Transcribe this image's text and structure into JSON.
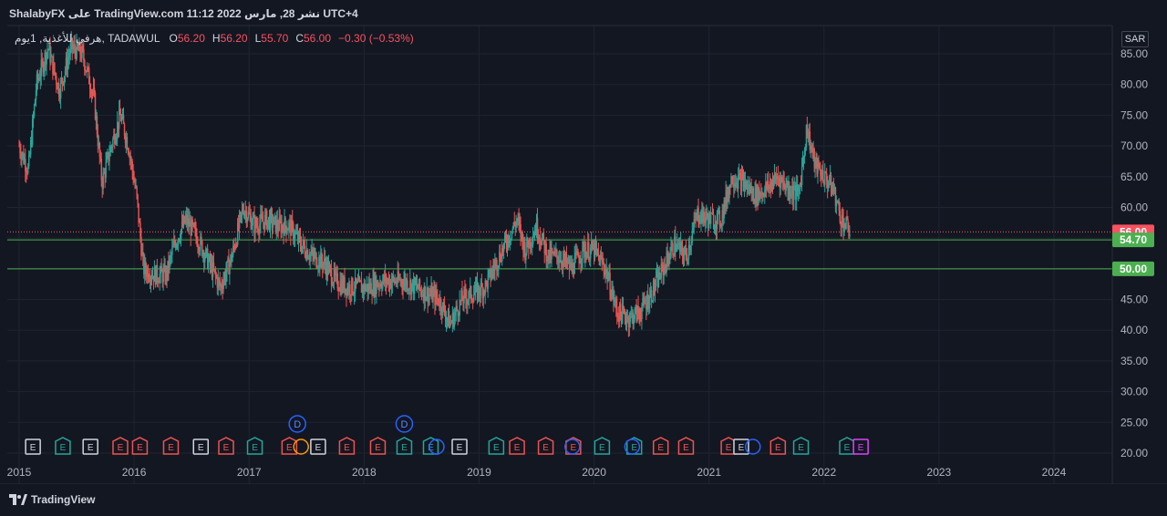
{
  "header": {
    "publisher_line": "ShalabyFX على TradingView.com نشر 28, مارس 2022 11:12 UTC+4"
  },
  "legend": {
    "symbol": "هرفي للأغذية, 1يوم, TADAWUL",
    "o_label": "O",
    "o_value": "56.20",
    "h_label": "H",
    "h_value": "56.20",
    "l_label": "L",
    "l_value": "55.70",
    "c_label": "C",
    "c_value": "56.00",
    "change": "−0.30 (−0.53%)"
  },
  "currency": "SAR",
  "footer": {
    "logo_text": "TradingView"
  },
  "colors": {
    "background": "#131722",
    "up": "#26a69a",
    "down": "#ef5350",
    "grid": "#1f2430",
    "support": "#4caf50",
    "last_price": "#f7525f"
  },
  "chart_data": {
    "type": "candlestick",
    "ylim": [
      20,
      87
    ],
    "xlim": [
      2015.0,
      2024.5
    ],
    "y_ticks": [
      "85.00",
      "80.00",
      "75.00",
      "70.00",
      "65.00",
      "60.00",
      "55.00",
      "50.00",
      "45.00",
      "40.00",
      "35.00",
      "30.00",
      "25.00",
      "20.00"
    ],
    "x_ticks": [
      "2015",
      "2016",
      "2017",
      "2018",
      "2019",
      "2020",
      "2021",
      "2022",
      "2023",
      "2024"
    ],
    "last_price": {
      "label": "56.00",
      "value": 56.0
    },
    "horizontal_lines": [
      {
        "label": "54.70",
        "value": 54.7
      },
      {
        "label": "50.00",
        "value": 50.0
      }
    ],
    "price_path": [
      [
        2015.0,
        70
      ],
      [
        2015.08,
        66
      ],
      [
        2015.15,
        80
      ],
      [
        2015.25,
        86
      ],
      [
        2015.35,
        79
      ],
      [
        2015.45,
        86
      ],
      [
        2015.55,
        85
      ],
      [
        2015.65,
        78
      ],
      [
        2015.72,
        64
      ],
      [
        2015.8,
        70
      ],
      [
        2015.88,
        75
      ],
      [
        2015.95,
        70
      ],
      [
        2016.02,
        62
      ],
      [
        2016.08,
        50
      ],
      [
        2016.18,
        49
      ],
      [
        2016.28,
        49
      ],
      [
        2016.35,
        54
      ],
      [
        2016.45,
        58
      ],
      [
        2016.55,
        55
      ],
      [
        2016.65,
        51
      ],
      [
        2016.75,
        47
      ],
      [
        2016.85,
        52
      ],
      [
        2016.95,
        60
      ],
      [
        2017.05,
        57
      ],
      [
        2017.15,
        58
      ],
      [
        2017.25,
        57
      ],
      [
        2017.35,
        57
      ],
      [
        2017.45,
        54
      ],
      [
        2017.55,
        52
      ],
      [
        2017.65,
        51
      ],
      [
        2017.75,
        48
      ],
      [
        2017.85,
        47
      ],
      [
        2017.95,
        47
      ],
      [
        2018.05,
        47
      ],
      [
        2018.15,
        48
      ],
      [
        2018.25,
        48
      ],
      [
        2018.35,
        48
      ],
      [
        2018.45,
        47
      ],
      [
        2018.55,
        46
      ],
      [
        2018.65,
        45
      ],
      [
        2018.75,
        41
      ],
      [
        2018.85,
        45
      ],
      [
        2018.95,
        46
      ],
      [
        2019.05,
        47
      ],
      [
        2019.15,
        51
      ],
      [
        2019.25,
        55
      ],
      [
        2019.33,
        58
      ],
      [
        2019.4,
        53
      ],
      [
        2019.5,
        57
      ],
      [
        2019.6,
        52
      ],
      [
        2019.7,
        52
      ],
      [
        2019.8,
        50
      ],
      [
        2019.9,
        53
      ],
      [
        2020.0,
        53
      ],
      [
        2020.1,
        50
      ],
      [
        2020.2,
        43
      ],
      [
        2020.3,
        42
      ],
      [
        2020.4,
        43
      ],
      [
        2020.5,
        46
      ],
      [
        2020.6,
        50
      ],
      [
        2020.7,
        54
      ],
      [
        2020.8,
        52
      ],
      [
        2020.9,
        59
      ],
      [
        2021.0,
        58
      ],
      [
        2021.1,
        58
      ],
      [
        2021.2,
        65
      ],
      [
        2021.3,
        64
      ],
      [
        2021.4,
        62
      ],
      [
        2021.5,
        63
      ],
      [
        2021.6,
        65
      ],
      [
        2021.7,
        63
      ],
      [
        2021.78,
        62
      ],
      [
        2021.85,
        73
      ],
      [
        2021.92,
        67
      ],
      [
        2022.0,
        65
      ],
      [
        2022.08,
        63
      ],
      [
        2022.15,
        58
      ],
      [
        2022.23,
        56
      ]
    ],
    "event_markers": [
      {
        "x": 2015.12,
        "label": "E",
        "kind": "earn-neutral"
      },
      {
        "x": 2015.38,
        "label": "E",
        "kind": "earn-up"
      },
      {
        "x": 2015.62,
        "label": "E",
        "kind": "earn-neutral"
      },
      {
        "x": 2015.88,
        "label": "E",
        "kind": "earn-down"
      },
      {
        "x": 2016.05,
        "label": "E",
        "kind": "earn-down"
      },
      {
        "x": 2016.32,
        "label": "E",
        "kind": "earn-down"
      },
      {
        "x": 2016.58,
        "label": "E",
        "kind": "earn-neutral"
      },
      {
        "x": 2016.8,
        "label": "E",
        "kind": "earn-down"
      },
      {
        "x": 2017.05,
        "label": "E",
        "kind": "earn-up"
      },
      {
        "x": 2017.35,
        "label": "E",
        "kind": "earn-down"
      },
      {
        "x": 2017.6,
        "label": "E",
        "kind": "earn-neutral"
      },
      {
        "x": 2017.85,
        "label": "E",
        "kind": "earn-down"
      },
      {
        "x": 2018.12,
        "label": "E",
        "kind": "earn-down"
      },
      {
        "x": 2018.35,
        "label": "E",
        "kind": "earn-up"
      },
      {
        "x": 2018.58,
        "label": "E",
        "kind": "earn-up"
      },
      {
        "x": 2018.83,
        "label": "E",
        "kind": "earn-neutral"
      },
      {
        "x": 2019.15,
        "label": "E",
        "kind": "earn-up"
      },
      {
        "x": 2019.33,
        "label": "E",
        "kind": "earn-down"
      },
      {
        "x": 2019.58,
        "label": "E",
        "kind": "earn-down"
      },
      {
        "x": 2019.82,
        "label": "E",
        "kind": "earn-down"
      },
      {
        "x": 2020.07,
        "label": "E",
        "kind": "earn-up"
      },
      {
        "x": 2020.35,
        "label": "E",
        "kind": "earn-up"
      },
      {
        "x": 2020.58,
        "label": "E",
        "kind": "earn-down"
      },
      {
        "x": 2020.8,
        "label": "E",
        "kind": "earn-down"
      },
      {
        "x": 2021.17,
        "label": "E",
        "kind": "earn-down"
      },
      {
        "x": 2021.28,
        "label": "E",
        "kind": "earn-neutral"
      },
      {
        "x": 2021.6,
        "label": "E",
        "kind": "earn-down"
      },
      {
        "x": 2021.8,
        "label": "E",
        "kind": "earn-up"
      },
      {
        "x": 2022.2,
        "label": "E",
        "kind": "earn-up"
      },
      {
        "x": 2022.32,
        "label": "E",
        "kind": "earn-future"
      }
    ],
    "dividend_markers": [
      {
        "x": 2017.42,
        "label": "D",
        "row": "upper"
      },
      {
        "x": 2018.35,
        "label": "D",
        "row": "upper"
      }
    ],
    "split_markers": [
      {
        "x": 2017.42,
        "kind": "orange"
      },
      {
        "x": 2018.6,
        "kind": "blue"
      },
      {
        "x": 2019.78,
        "kind": "blue"
      },
      {
        "x": 2020.3,
        "kind": "blue"
      },
      {
        "x": 2021.35,
        "kind": "blue"
      }
    ]
  }
}
